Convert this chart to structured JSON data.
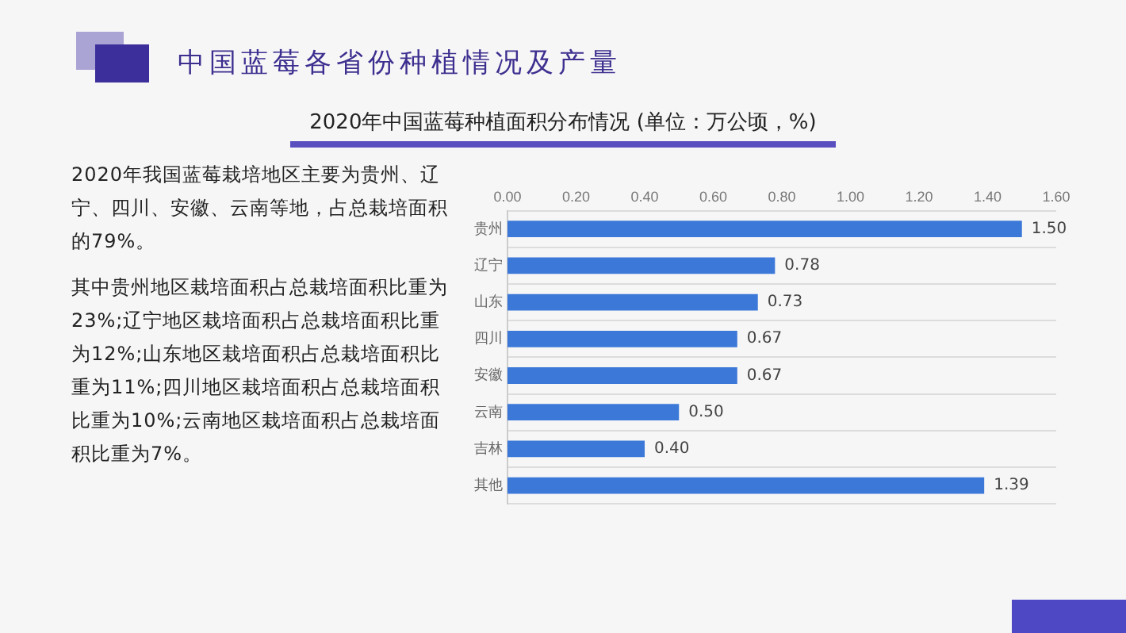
{
  "chart_data": {
    "type": "bar",
    "orientation": "horizontal",
    "title": "中国蓝莓各省份种植情况及产量",
    "subtitle": "2020年中国蓝莓种植面积分布情况 (单位：万公顷，%)",
    "annotations": [
      "2020年我国蓝莓栽培地区主要为贵州、辽宁、四川、安徽、云南等地，占总栽培面积的79%。",
      "其中贵州地区栽培面积占总栽培面积比重为23%;辽宁地区栽培面积占总栽培面积比重为12%;山东地区栽培面积占总栽培面积比重为11%;四川地区栽培面积占总栽培面积比重为10%;云南地区栽培面积占总栽培面积比重为7%。"
    ],
    "categories": [
      "贵州",
      "辽宁",
      "山东",
      "四川",
      "安徽",
      "云南",
      "吉林",
      "其他"
    ],
    "values": [
      1.5,
      0.78,
      0.73,
      0.67,
      0.67,
      0.5,
      0.4,
      1.39
    ],
    "color": "#3b78d8",
    "xlim": [
      0,
      1.6
    ],
    "xticks": [
      {
        "value": 0,
        "label": "0.00"
      },
      {
        "value": 0.2,
        "label": "0.20"
      },
      {
        "value": 0.4,
        "label": "0.40"
      },
      {
        "value": 0.6,
        "label": "0.60"
      },
      {
        "value": 0.8,
        "label": "0.80"
      },
      {
        "value": 1,
        "label": "1.00"
      },
      {
        "value": 1.2,
        "label": "1.20"
      },
      {
        "value": 1.4,
        "label": "1.40"
      },
      {
        "value": 1.6,
        "label": "1.60"
      }
    ],
    "value_labels": [
      "1.50",
      "0.78",
      "0.73",
      "0.67",
      "0.67",
      "0.50",
      "0.40",
      "1.39"
    ],
    "grid": "y",
    "legend": false
  }
}
